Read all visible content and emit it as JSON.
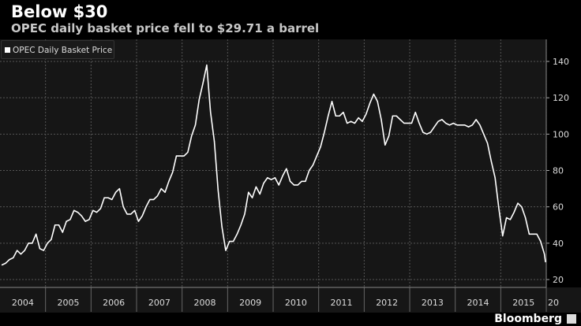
{
  "header": {
    "title": "Below $30",
    "subtitle": "OPEC daily basket price fell to $29.71 a barrel"
  },
  "footer": {
    "brand": "Bloomberg"
  },
  "chart_data": {
    "type": "line",
    "title": "Below $30",
    "subtitle": "OPEC daily basket price fell to $29.71 a barrel",
    "legend_position": "top-left",
    "grid": true,
    "ylim": [
      18,
      145
    ],
    "y_ticks": [
      20,
      40,
      60,
      80,
      100,
      120,
      140
    ],
    "y_axis_side": "right",
    "x_tick_labels": [
      "2004",
      "2005",
      "2006",
      "2007",
      "2008",
      "2009",
      "2010",
      "2011",
      "2012",
      "2013",
      "2014",
      "2015",
      "20"
    ],
    "series": [
      {
        "name": "OPEC Daily Basket Price",
        "color": "#ffffff",
        "start": "2004-01",
        "frequency": "monthly",
        "values": [
          28,
          29,
          31,
          32,
          36,
          34,
          36,
          40,
          40,
          45,
          37,
          36,
          40,
          42,
          50,
          50,
          46,
          52,
          53,
          58,
          57,
          55,
          52,
          53,
          58,
          57,
          59,
          65,
          65,
          64,
          68,
          70,
          60,
          56,
          56,
          58,
          52,
          55,
          60,
          64,
          64,
          66,
          70,
          68,
          74,
          79,
          88,
          88,
          88,
          90,
          99,
          105,
          119,
          128,
          138,
          112,
          96,
          69,
          49,
          36,
          41,
          41,
          45,
          50,
          56,
          68,
          65,
          71,
          67,
          73,
          76,
          75,
          76,
          72,
          77,
          81,
          74,
          72,
          72,
          74,
          74,
          80,
          83,
          88,
          93,
          101,
          110,
          118,
          110,
          110,
          112,
          106,
          107,
          106,
          109,
          107,
          111,
          117,
          122,
          118,
          108,
          94,
          99,
          110,
          110,
          108,
          106,
          106,
          106,
          112,
          106,
          101,
          100,
          101,
          104,
          107,
          108,
          106,
          105,
          106,
          105,
          105,
          105,
          104,
          105,
          108,
          105,
          100,
          95,
          85,
          76,
          59,
          44,
          54,
          53,
          57,
          62,
          60,
          54,
          45,
          45,
          45,
          41,
          34,
          29.71
        ]
      }
    ]
  }
}
